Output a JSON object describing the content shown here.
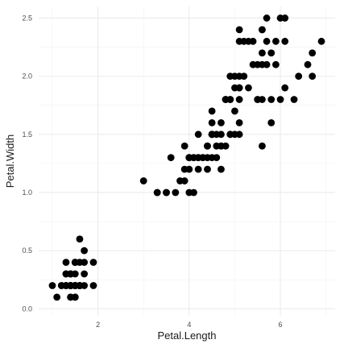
{
  "chart_data": {
    "type": "scatter",
    "title": "",
    "xlabel": "Petal.Length",
    "ylabel": "Petal.Width",
    "xlim": [
      0.7,
      7.2
    ],
    "ylim": [
      -0.06,
      2.6
    ],
    "x_ticks": [
      2,
      4,
      6
    ],
    "x_tick_labels": [
      "2",
      "4",
      "6"
    ],
    "y_ticks": [
      0,
      0.5,
      1,
      1.5,
      2,
      2.5
    ],
    "y_tick_labels": [
      "0.0",
      "0.5",
      "1.0",
      "1.5",
      "2.0",
      "2.5"
    ],
    "grid": true,
    "legend": "none",
    "point_color": "#000000",
    "points": [
      [
        1.4,
        0.2
      ],
      [
        1.4,
        0.2
      ],
      [
        1.3,
        0.2
      ],
      [
        1.5,
        0.2
      ],
      [
        1.4,
        0.2
      ],
      [
        1.7,
        0.4
      ],
      [
        1.4,
        0.3
      ],
      [
        1.5,
        0.2
      ],
      [
        1.4,
        0.2
      ],
      [
        1.5,
        0.1
      ],
      [
        1.5,
        0.2
      ],
      [
        1.6,
        0.2
      ],
      [
        1.4,
        0.1
      ],
      [
        1.1,
        0.1
      ],
      [
        1.2,
        0.2
      ],
      [
        1.5,
        0.4
      ],
      [
        1.3,
        0.4
      ],
      [
        1.4,
        0.3
      ],
      [
        1.7,
        0.3
      ],
      [
        1.5,
        0.3
      ],
      [
        1.7,
        0.2
      ],
      [
        1.5,
        0.4
      ],
      [
        1.0,
        0.2
      ],
      [
        1.7,
        0.5
      ],
      [
        1.9,
        0.2
      ],
      [
        1.6,
        0.2
      ],
      [
        1.6,
        0.4
      ],
      [
        1.5,
        0.2
      ],
      [
        1.4,
        0.2
      ],
      [
        1.6,
        0.2
      ],
      [
        1.6,
        0.2
      ],
      [
        1.5,
        0.4
      ],
      [
        1.5,
        0.1
      ],
      [
        1.4,
        0.2
      ],
      [
        1.5,
        0.2
      ],
      [
        1.2,
        0.2
      ],
      [
        1.3,
        0.2
      ],
      [
        1.4,
        0.1
      ],
      [
        1.3,
        0.2
      ],
      [
        1.5,
        0.2
      ],
      [
        1.3,
        0.3
      ],
      [
        1.3,
        0.3
      ],
      [
        1.3,
        0.2
      ],
      [
        1.6,
        0.6
      ],
      [
        1.9,
        0.4
      ],
      [
        1.4,
        0.3
      ],
      [
        1.6,
        0.2
      ],
      [
        1.4,
        0.2
      ],
      [
        1.5,
        0.2
      ],
      [
        1.4,
        0.2
      ],
      [
        4.7,
        1.4
      ],
      [
        4.5,
        1.5
      ],
      [
        4.9,
        1.5
      ],
      [
        4.0,
        1.3
      ],
      [
        4.6,
        1.5
      ],
      [
        4.5,
        1.3
      ],
      [
        4.7,
        1.6
      ],
      [
        3.3,
        1.0
      ],
      [
        4.6,
        1.3
      ],
      [
        3.9,
        1.4
      ],
      [
        3.5,
        1.0
      ],
      [
        4.2,
        1.5
      ],
      [
        4.0,
        1.0
      ],
      [
        4.7,
        1.4
      ],
      [
        3.6,
        1.3
      ],
      [
        4.4,
        1.4
      ],
      [
        4.5,
        1.5
      ],
      [
        4.1,
        1.0
      ],
      [
        4.5,
        1.5
      ],
      [
        3.9,
        1.1
      ],
      [
        4.8,
        1.8
      ],
      [
        4.0,
        1.3
      ],
      [
        4.9,
        1.5
      ],
      [
        4.7,
        1.2
      ],
      [
        4.3,
        1.3
      ],
      [
        4.4,
        1.4
      ],
      [
        4.8,
        1.4
      ],
      [
        5.0,
        1.7
      ],
      [
        4.5,
        1.5
      ],
      [
        3.5,
        1.0
      ],
      [
        3.8,
        1.1
      ],
      [
        3.7,
        1.0
      ],
      [
        3.9,
        1.2
      ],
      [
        5.1,
        1.6
      ],
      [
        4.5,
        1.5
      ],
      [
        4.5,
        1.6
      ],
      [
        4.7,
        1.5
      ],
      [
        4.4,
        1.3
      ],
      [
        4.1,
        1.3
      ],
      [
        4.0,
        1.3
      ],
      [
        4.4,
        1.2
      ],
      [
        4.6,
        1.4
      ],
      [
        4.0,
        1.2
      ],
      [
        3.3,
        1.0
      ],
      [
        4.2,
        1.3
      ],
      [
        4.2,
        1.2
      ],
      [
        4.2,
        1.3
      ],
      [
        4.3,
        1.3
      ],
      [
        3.0,
        1.1
      ],
      [
        4.1,
        1.3
      ],
      [
        6.0,
        2.5
      ],
      [
        5.1,
        1.9
      ],
      [
        5.9,
        2.1
      ],
      [
        5.6,
        1.8
      ],
      [
        5.8,
        2.2
      ],
      [
        6.6,
        2.1
      ],
      [
        4.5,
        1.7
      ],
      [
        6.3,
        1.8
      ],
      [
        5.8,
        1.8
      ],
      [
        6.1,
        2.5
      ],
      [
        5.1,
        2.0
      ],
      [
        5.3,
        1.9
      ],
      [
        5.5,
        2.1
      ],
      [
        5.0,
        2.0
      ],
      [
        5.1,
        2.4
      ],
      [
        5.3,
        2.3
      ],
      [
        5.5,
        1.8
      ],
      [
        6.7,
        2.2
      ],
      [
        6.9,
        2.3
      ],
      [
        5.0,
        1.5
      ],
      [
        5.7,
        2.3
      ],
      [
        4.9,
        2.0
      ],
      [
        6.7,
        2.0
      ],
      [
        4.9,
        1.8
      ],
      [
        5.7,
        2.1
      ],
      [
        6.0,
        1.8
      ],
      [
        4.8,
        1.8
      ],
      [
        4.9,
        1.8
      ],
      [
        5.6,
        2.1
      ],
      [
        5.8,
        1.6
      ],
      [
        6.1,
        1.9
      ],
      [
        6.4,
        2.0
      ],
      [
        5.6,
        2.2
      ],
      [
        5.1,
        1.5
      ],
      [
        5.6,
        1.4
      ],
      [
        6.1,
        2.3
      ],
      [
        5.6,
        2.4
      ],
      [
        5.5,
        1.8
      ],
      [
        4.8,
        1.8
      ],
      [
        5.4,
        2.1
      ],
      [
        5.6,
        2.4
      ],
      [
        5.1,
        2.3
      ],
      [
        5.1,
        1.9
      ],
      [
        5.9,
        2.3
      ],
      [
        5.7,
        2.5
      ],
      [
        5.2,
        2.3
      ],
      [
        5.0,
        1.9
      ],
      [
        5.2,
        2.0
      ],
      [
        5.4,
        2.3
      ],
      [
        5.1,
        1.8
      ]
    ]
  }
}
